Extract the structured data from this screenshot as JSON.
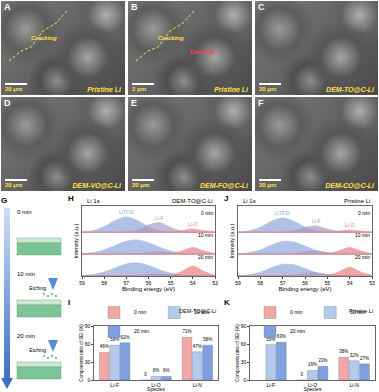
{
  "images": [
    {
      "panel": "A",
      "caption": "Pristine Li",
      "scale_bar": "20 μm",
      "notes": [
        "Cracking"
      ]
    },
    {
      "panel": "B",
      "caption": "Pristine Li",
      "scale_bar": "2 μm",
      "notes": [
        "Cracking",
        "Dendrite"
      ]
    },
    {
      "panel": "C",
      "caption": "DEM-TO@C-Li",
      "scale_bar": "20 μm",
      "notes": []
    },
    {
      "panel": "D",
      "caption": "DEM-VO@C-Li",
      "scale_bar": "20 μm",
      "notes": []
    },
    {
      "panel": "E",
      "caption": "DEM-FO@C-Li",
      "scale_bar": "20 μm",
      "notes": []
    },
    {
      "panel": "F",
      "caption": "DEM-CO@C-Li",
      "scale_bar": "20 μm",
      "notes": []
    }
  ],
  "schematic": {
    "panel": "G",
    "times": [
      "0 min",
      "10 min",
      "20 min"
    ],
    "action": "Etching"
  },
  "chart_data": [
    {
      "panel": "H",
      "type": "line",
      "title": "Li 1s",
      "subtitle": "DEM-TO@C-Li",
      "x_label": "Binding energy (eV)",
      "y_label": "Intensity (a.u.)",
      "x": [
        59,
        58.5,
        58,
        57.5,
        57,
        56.5,
        56,
        55.5,
        55,
        54.5,
        54,
        53.5,
        53
      ],
      "xlim": [
        59,
        53
      ],
      "xticks": [
        59,
        58,
        57,
        56,
        55,
        54,
        53
      ],
      "ylim": [
        0,
        3.2
      ],
      "tick_labels": "x",
      "spectra": [
        {
          "name": "0 min",
          "baseline": 2,
          "series": [
            {
              "name": "LiTFSI",
              "color": "#8ea9dc",
              "values": [
                2.01,
                2.07,
                2.25,
                2.54,
                2.7,
                2.54,
                2.25,
                2.07,
                2.01,
                2,
                2,
                2,
                2
              ]
            },
            {
              "name": "Li-F",
              "color": "#a99dc6",
              "values": [
                2,
                2,
                2,
                2,
                2.01,
                2.09,
                2.33,
                2.44,
                2.22,
                2.04,
                2,
                2,
                2
              ]
            },
            {
              "name": "Li-O",
              "color": "#e88080",
              "values": [
                2,
                2,
                2,
                2,
                2,
                2,
                2,
                2,
                2.01,
                2.07,
                2.15,
                2.07,
                2.01
              ]
            }
          ]
        },
        {
          "name": "10 min",
          "baseline": 1,
          "series": [
            {
              "name": "LiTFSI",
              "color": "#8ea9dc",
              "values": [
                1.02,
                1.07,
                1.19,
                1.39,
                1.59,
                1.65,
                1.52,
                1.31,
                1.14,
                1.04,
                1.01,
                1,
                1
              ]
            },
            {
              "name": "Li-F",
              "color": "#a99dc6",
              "values": [
                1,
                1,
                1,
                1,
                1,
                1.02,
                1.09,
                1.12,
                1.06,
                1.01,
                1,
                1,
                1
              ]
            },
            {
              "name": "Li-O",
              "color": "#e88080",
              "values": [
                1,
                1,
                1,
                1,
                1,
                1,
                1,
                1,
                1.01,
                1.14,
                1.3,
                1.14,
                1.01
              ]
            }
          ]
        },
        {
          "name": "20 min",
          "baseline": 0,
          "series": [
            {
              "name": "LiTFSI",
              "color": "#8ea9dc",
              "values": [
                0.02,
                0.07,
                0.18,
                0.37,
                0.55,
                0.6,
                0.48,
                0.28,
                0.13,
                0.04,
                0.01,
                0,
                0
              ]
            },
            {
              "name": "Li-F",
              "color": "#a99dc6",
              "values": [
                0,
                0,
                0,
                0,
                0,
                0.02,
                0.07,
                0.1,
                0.05,
                0.01,
                0,
                0,
                0
              ]
            },
            {
              "name": "Li-O",
              "color": "#e88080",
              "values": [
                0,
                0,
                0,
                0,
                0,
                0,
                0,
                0,
                0.02,
                0.21,
                0.45,
                0.21,
                0.02
              ]
            }
          ]
        }
      ]
    },
    {
      "panel": "I",
      "type": "bar",
      "subtitle": "DEM-TO@C-Li",
      "x_label": "Species",
      "y_label": "Components ratio of SEI (%)",
      "categories": [
        "Li-F",
        "Li-O",
        "Li-N"
      ],
      "ylim": [
        0,
        90
      ],
      "yticks": [
        0,
        30,
        60,
        90
      ],
      "legend": "top",
      "data_labels": true,
      "series": [
        {
          "name": "0 min",
          "color": "#f2a7a7",
          "values": [
            46,
            0,
            71
          ],
          "value_labels": [
            "46%",
            "0",
            "71%"
          ]
        },
        {
          "name": "10 min",
          "color": "#b3c9ee",
          "values": [
            58,
            6,
            47
          ],
          "value_labels": [
            "58%",
            "6%",
            "47%"
          ]
        },
        {
          "name": "20 min",
          "color": "#7f9fdf",
          "values": [
            62,
            6,
            58
          ],
          "value_labels": [
            "62%",
            "6%",
            "58%"
          ]
        }
      ]
    },
    {
      "panel": "J",
      "type": "line",
      "title": "Li 1s",
      "subtitle": "Pristine Li",
      "x_label": "Binding energy (eV)",
      "y_label": "Intensity (a.u.)",
      "x": [
        59,
        58.5,
        58,
        57.5,
        57,
        56.5,
        56,
        55.5,
        55,
        54.5,
        54,
        53.5,
        53
      ],
      "xlim": [
        59,
        53
      ],
      "xticks": [
        59,
        58,
        57,
        56,
        55,
        54,
        53
      ],
      "ylim": [
        0,
        3.2
      ],
      "tick_labels": "x",
      "spectra": [
        {
          "name": "0 min",
          "baseline": 2,
          "series": [
            {
              "name": "LiTFSI",
              "color": "#8ea9dc",
              "values": [
                2.01,
                2.07,
                2.23,
                2.5,
                2.65,
                2.5,
                2.23,
                2.07,
                2.01,
                2,
                2,
                2,
                2
              ]
            },
            {
              "name": "Li-F",
              "color": "#a99dc6",
              "values": [
                2,
                2,
                2,
                2,
                2,
                2.06,
                2.22,
                2.29,
                2.15,
                2.03,
                2,
                2,
                2
              ]
            },
            {
              "name": "Li-O",
              "color": "#e88080",
              "values": [
                2,
                2,
                2,
                2,
                2,
                2,
                2,
                2,
                2,
                2.05,
                2.1,
                2.05,
                2
              ]
            }
          ]
        },
        {
          "name": "10 min",
          "baseline": 1,
          "series": [
            {
              "name": "LiTFSI",
              "color": "#8ea9dc",
              "values": [
                1.01,
                1.06,
                1.19,
                1.41,
                1.58,
                1.56,
                1.37,
                1.16,
                1.05,
                1.01,
                1,
                1,
                1
              ]
            },
            {
              "name": "Li-F",
              "color": "#a99dc6",
              "values": [
                1,
                1,
                1,
                1,
                1,
                1.03,
                1.11,
                1.15,
                1.07,
                1.01,
                1,
                1,
                1
              ]
            },
            {
              "name": "Li-O",
              "color": "#e88080",
              "values": [
                1,
                1,
                1,
                1,
                1,
                1,
                1,
                1,
                1.01,
                1.14,
                1.3,
                1.14,
                1.01
              ]
            }
          ]
        },
        {
          "name": "20 min",
          "baseline": 0,
          "series": [
            {
              "name": "LiTFSI",
              "color": "#8ea9dc",
              "values": [
                0.01,
                0.06,
                0.17,
                0.38,
                0.53,
                0.51,
                0.34,
                0.15,
                0.05,
                0.01,
                0,
                0,
                0
              ]
            },
            {
              "name": "Li-F",
              "color": "#a99dc6",
              "values": [
                0,
                0,
                0,
                0,
                0,
                0.03,
                0.11,
                0.15,
                0.07,
                0.01,
                0,
                0,
                0
              ]
            },
            {
              "name": "Li-O",
              "color": "#e88080",
              "values": [
                0,
                0,
                0,
                0,
                0,
                0,
                0,
                0,
                0.02,
                0.18,
                0.4,
                0.18,
                0.02
              ]
            }
          ]
        }
      ]
    },
    {
      "panel": "K",
      "type": "bar",
      "subtitle": "Pristine Li",
      "x_label": "Species",
      "y_label": "Components ratio of SEI (%)",
      "categories": [
        "Li-F",
        "Li-O",
        "Li-N"
      ],
      "ylim": [
        0,
        90
      ],
      "yticks": [
        0,
        30,
        60,
        90
      ],
      "legend": "top",
      "data_labels": true,
      "series": [
        {
          "name": "0 min",
          "color": "#f2a7a7",
          "values": [
            null,
            0,
            38
          ],
          "value_labels": [
            null,
            "0",
            "38%"
          ]
        },
        {
          "name": "10 min",
          "color": "#b3c9ee",
          "values": [
            59,
            16,
            32
          ],
          "value_labels": [
            "59%",
            "16%",
            "32%"
          ]
        },
        {
          "name": "20 min",
          "color": "#7f9fdf",
          "values": [
            63,
            23,
            27
          ],
          "value_labels": [
            "63%",
            "23%",
            "27%"
          ]
        }
      ]
    }
  ]
}
